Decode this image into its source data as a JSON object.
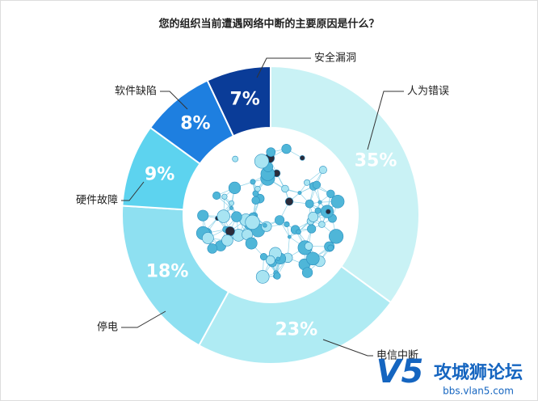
{
  "chart_data": {
    "type": "donut",
    "title": "您的组织当前遭遇网络中断的主要原因是什么？",
    "categories": [
      "人为错误",
      "电信中断",
      "停电",
      "硬件故障",
      "软件缺陷",
      "安全漏洞"
    ],
    "values": [
      35,
      23,
      18,
      9,
      8,
      7
    ],
    "value_labels": [
      "35%",
      "23%",
      "18%",
      "9%",
      "8%",
      "7%"
    ],
    "colors": [
      "#c9f2f5",
      "#afebf3",
      "#8ee0f1",
      "#5dd3ef",
      "#1e7fe0",
      "#0a3c98"
    ],
    "watermark": {
      "logo": "V5",
      "name": "攻城狮论坛",
      "url": "bbs.vlan5.com"
    }
  }
}
